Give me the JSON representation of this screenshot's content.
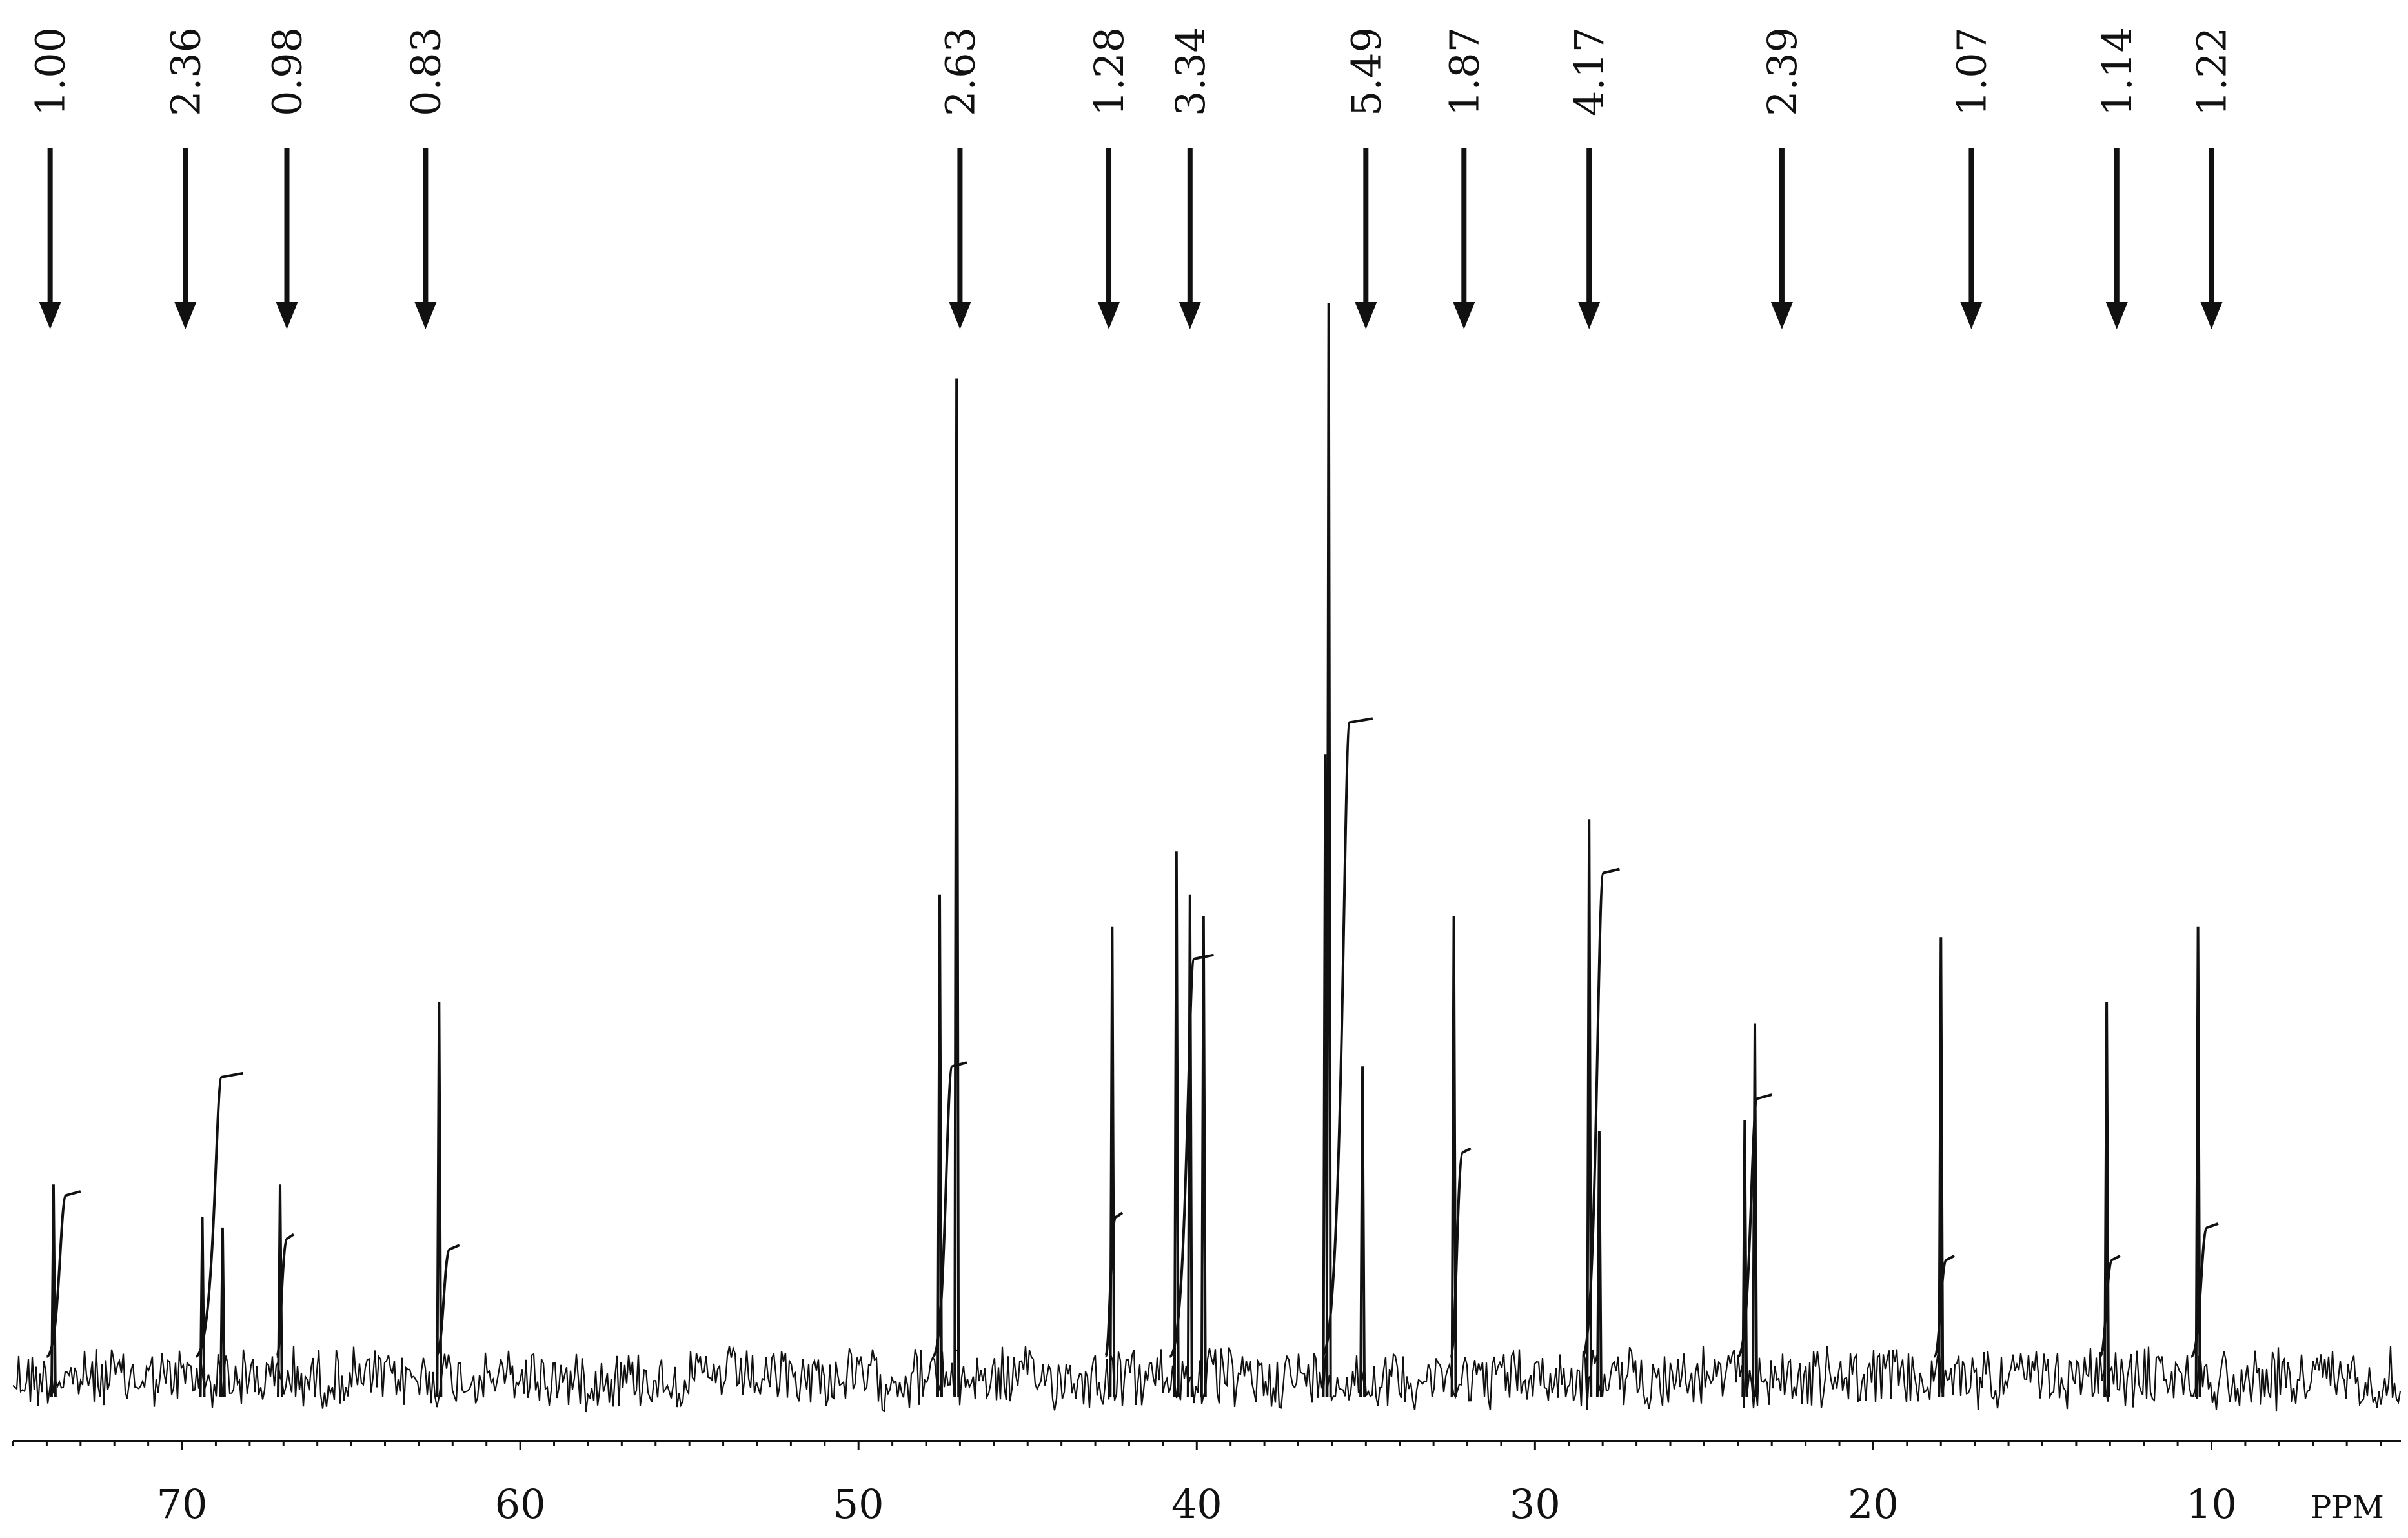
{
  "chart_data": {
    "type": "line",
    "title": "",
    "xlabel": "PPM",
    "ylabel": "",
    "xlim": [
      75.0,
      4.4
    ],
    "ylim": [
      0,
      1.0
    ],
    "x_reversed": true,
    "grid": false,
    "x_ticks": [
      70,
      60,
      50,
      40,
      30,
      20,
      10
    ],
    "x_tick_labels": [
      "70",
      "60",
      "50",
      "40",
      "30",
      "20",
      "10"
    ],
    "peaks": [
      {
        "ppm": 73.8,
        "height": 0.18
      },
      {
        "ppm": 69.4,
        "height": 0.15
      },
      {
        "ppm": 68.8,
        "height": 0.14
      },
      {
        "ppm": 67.1,
        "height": 0.18
      },
      {
        "ppm": 62.4,
        "height": 0.35
      },
      {
        "ppm": 47.6,
        "height": 0.45
      },
      {
        "ppm": 47.1,
        "height": 0.93
      },
      {
        "ppm": 42.5,
        "height": 0.42
      },
      {
        "ppm": 40.6,
        "height": 0.49
      },
      {
        "ppm": 40.2,
        "height": 0.45
      },
      {
        "ppm": 39.8,
        "height": 0.43
      },
      {
        "ppm": 36.2,
        "height": 0.58
      },
      {
        "ppm": 36.1,
        "height": 1.0
      },
      {
        "ppm": 35.1,
        "height": 0.29
      },
      {
        "ppm": 32.4,
        "height": 0.43
      },
      {
        "ppm": 28.4,
        "height": 0.52
      },
      {
        "ppm": 28.1,
        "height": 0.23
      },
      {
        "ppm": 23.8,
        "height": 0.24
      },
      {
        "ppm": 23.5,
        "height": 0.33
      },
      {
        "ppm": 18.0,
        "height": 0.41
      },
      {
        "ppm": 13.1,
        "height": 0.35
      },
      {
        "ppm": 10.4,
        "height": 0.42
      }
    ],
    "integration_markers": [
      {
        "ppm": 73.9,
        "label": "1.00"
      },
      {
        "ppm": 69.9,
        "label": "2.36"
      },
      {
        "ppm": 66.9,
        "label": "0.98"
      },
      {
        "ppm": 62.8,
        "label": "0.83"
      },
      {
        "ppm": 47.0,
        "label": "2.63"
      },
      {
        "ppm": 42.6,
        "label": "1.28"
      },
      {
        "ppm": 40.2,
        "label": "3.34"
      },
      {
        "ppm": 35.0,
        "label": "5.49"
      },
      {
        "ppm": 32.1,
        "label": "1.87"
      },
      {
        "ppm": 28.4,
        "label": "4.17"
      },
      {
        "ppm": 22.7,
        "label": "2.39"
      },
      {
        "ppm": 17.1,
        "label": "1.07"
      },
      {
        "ppm": 12.8,
        "label": "1.14"
      },
      {
        "ppm": 10.0,
        "label": "1.22"
      }
    ],
    "integral_curves": [
      {
        "from_ppm": 74.0,
        "to_ppm": 73.0,
        "level": 0.17
      },
      {
        "from_ppm": 69.6,
        "to_ppm": 68.2,
        "level": 0.28
      },
      {
        "from_ppm": 67.2,
        "to_ppm": 66.7,
        "level": 0.13
      },
      {
        "from_ppm": 62.5,
        "to_ppm": 61.8,
        "level": 0.12
      },
      {
        "from_ppm": 47.8,
        "to_ppm": 46.8,
        "level": 0.29
      },
      {
        "from_ppm": 42.7,
        "to_ppm": 42.2,
        "level": 0.15
      },
      {
        "from_ppm": 40.8,
        "to_ppm": 39.5,
        "level": 0.39
      },
      {
        "from_ppm": 36.3,
        "to_ppm": 34.8,
        "level": 0.61
      },
      {
        "from_ppm": 32.5,
        "to_ppm": 31.9,
        "level": 0.21
      },
      {
        "from_ppm": 28.6,
        "to_ppm": 27.5,
        "level": 0.47
      },
      {
        "from_ppm": 24.0,
        "to_ppm": 23.0,
        "level": 0.26
      },
      {
        "from_ppm": 18.2,
        "to_ppm": 17.6,
        "level": 0.11
      },
      {
        "from_ppm": 13.3,
        "to_ppm": 12.7,
        "level": 0.11
      },
      {
        "from_ppm": 10.6,
        "to_ppm": 9.8,
        "level": 0.14
      }
    ]
  }
}
